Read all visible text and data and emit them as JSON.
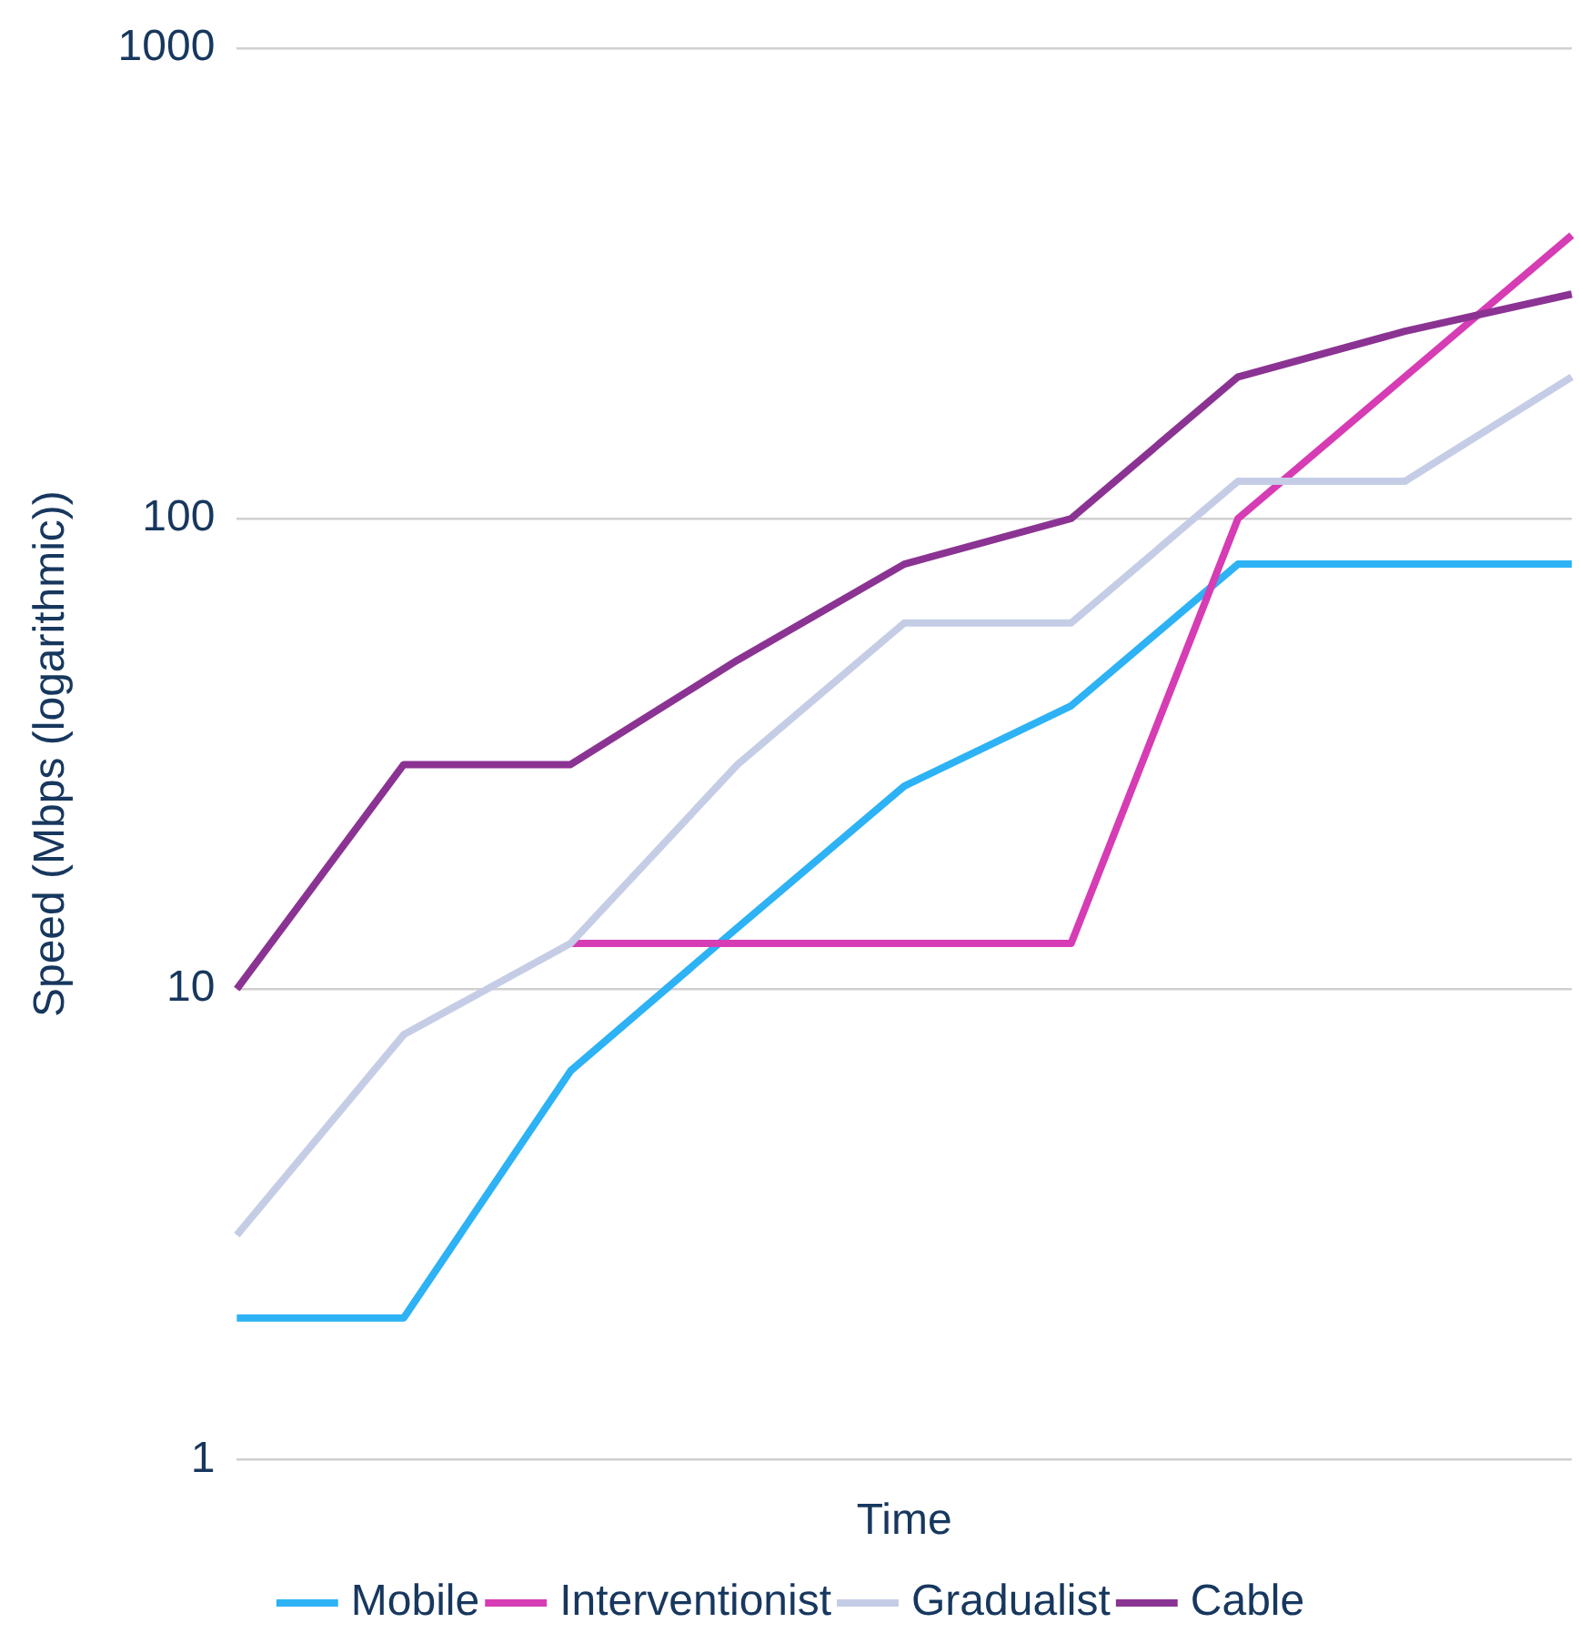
{
  "chart_data": {
    "type": "line",
    "xlabel": "Time",
    "ylabel": "Speed (Mbps (logarithmic))",
    "categories": [
      null,
      null,
      null,
      null,
      null,
      null,
      null,
      null,
      null
    ],
    "series": [
      {
        "name": "Mobile",
        "color": "#2db2f5",
        "values": [
          2,
          2,
          6.7,
          13.5,
          27,
          40,
          80,
          80,
          80
        ]
      },
      {
        "name": "Interventionist",
        "color": "#d63cb4",
        "values": [
          null,
          null,
          12.5,
          12.5,
          12.5,
          12.5,
          100,
          200,
          400
        ]
      },
      {
        "name": "Gradualist",
        "color": "#c5cde6",
        "values": [
          3,
          8,
          12.5,
          30,
          60,
          60,
          120,
          120,
          200
        ]
      },
      {
        "name": "Cable",
        "color": "#8b3393",
        "values": [
          10,
          30,
          30,
          50,
          80,
          100,
          200,
          250,
          300
        ]
      }
    ],
    "log": "y",
    "ylim": [
      1,
      1000
    ],
    "yticks": [
      1,
      10,
      100,
      1000
    ],
    "grid": "y",
    "legend": "bottom",
    "tick_labels": "y",
    "marker": "none",
    "line_style": "solid"
  }
}
